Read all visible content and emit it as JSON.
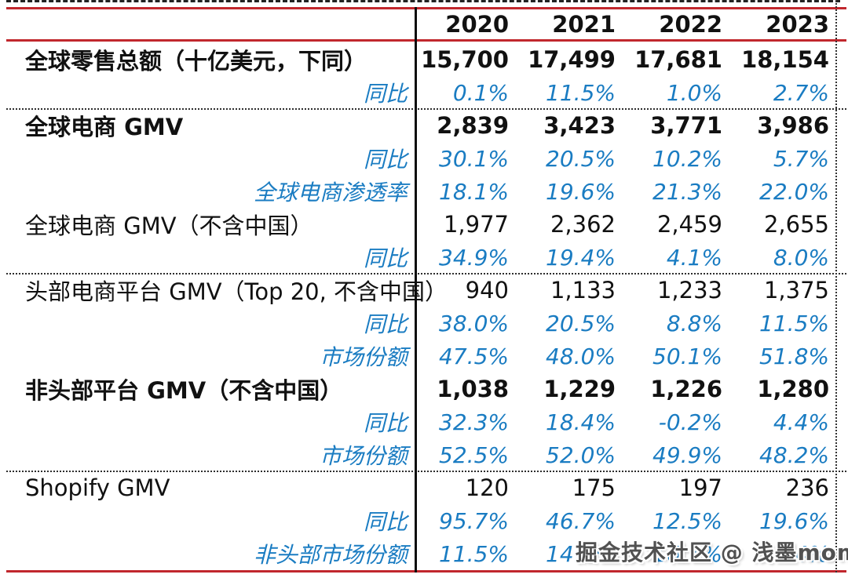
{
  "colors": {
    "accent_red": "#c1272d",
    "accent_blue": "#1a7cc2",
    "text_black": "#111111",
    "watermark_gray": "#424242"
  },
  "watermark": {
    "text": "掘金技术社区 @ 浅墨momo"
  },
  "chart_data": {
    "type": "table",
    "title": "",
    "years": [
      "2020",
      "2021",
      "2022",
      "2023"
    ],
    "unit_note": "十亿美元",
    "rows": [
      {
        "label": "全球零售总额（十亿美元，下同）",
        "values": [
          "15,700",
          "17,499",
          "17,681",
          "18,154"
        ],
        "style": "bold",
        "divider_after": false
      },
      {
        "label": "同比",
        "values": [
          "0.1%",
          "11.5%",
          "1.0%",
          "2.7%"
        ],
        "style": "sub",
        "divider_after": true
      },
      {
        "label": "全球电商 GMV",
        "values": [
          "2,839",
          "3,423",
          "3,771",
          "3,986"
        ],
        "style": "bold",
        "divider_after": false
      },
      {
        "label": "同比",
        "values": [
          "30.1%",
          "20.5%",
          "10.2%",
          "5.7%"
        ],
        "style": "sub",
        "divider_after": false
      },
      {
        "label": "全球电商渗透率",
        "values": [
          "18.1%",
          "19.6%",
          "21.3%",
          "22.0%"
        ],
        "style": "sub",
        "divider_after": false
      },
      {
        "label": "全球电商 GMV（不含中国）",
        "values": [
          "1,977",
          "2,362",
          "2,459",
          "2,655"
        ],
        "style": "normal",
        "divider_after": false
      },
      {
        "label": "同比",
        "values": [
          "34.9%",
          "19.4%",
          "4.1%",
          "8.0%"
        ],
        "style": "sub",
        "divider_after": true
      },
      {
        "label": "头部电商平台 GMV（Top 20, 不含中国）",
        "values": [
          "940",
          "1,133",
          "1,233",
          "1,375"
        ],
        "style": "normal",
        "divider_after": false
      },
      {
        "label": "同比",
        "values": [
          "38.0%",
          "20.5%",
          "8.8%",
          "11.5%"
        ],
        "style": "sub",
        "divider_after": false
      },
      {
        "label": "市场份额",
        "values": [
          "47.5%",
          "48.0%",
          "50.1%",
          "51.8%"
        ],
        "style": "sub",
        "divider_after": false
      },
      {
        "label": "非头部平台 GMV（不含中国）",
        "values": [
          "1,038",
          "1,229",
          "1,226",
          "1,280"
        ],
        "style": "bold",
        "divider_after": false
      },
      {
        "label": "同比",
        "values": [
          "32.3%",
          "18.4%",
          "-0.2%",
          "4.4%"
        ],
        "style": "sub",
        "divider_after": false
      },
      {
        "label": "市场份额",
        "values": [
          "52.5%",
          "52.0%",
          "49.9%",
          "48.2%"
        ],
        "style": "sub",
        "divider_after": true
      },
      {
        "label": "Shopify GMV",
        "values": [
          "120",
          "175",
          "197",
          "236"
        ],
        "style": "normal",
        "divider_after": false
      },
      {
        "label": "同比",
        "values": [
          "95.7%",
          "46.7%",
          "12.5%",
          "19.6%"
        ],
        "style": "sub",
        "divider_after": false
      },
      {
        "label": "非头部市场份额",
        "values": [
          "11.5%",
          "14.3%",
          "16.1%",
          "18.4%"
        ],
        "style": "sub",
        "divider_after": false
      }
    ]
  }
}
